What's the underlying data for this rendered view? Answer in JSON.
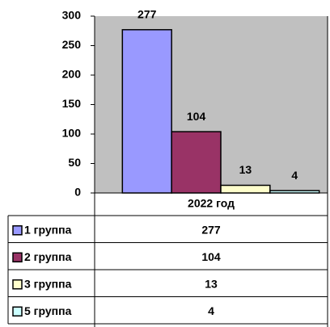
{
  "chart_data": {
    "type": "bar",
    "categories": [
      "2022 год"
    ],
    "series": [
      {
        "name": "1 группа",
        "color": "#9999ff",
        "values": [
          277
        ]
      },
      {
        "name": "2 группа",
        "color": "#993366",
        "values": [
          104
        ]
      },
      {
        "name": "3 группа",
        "color": "#ffffcc",
        "values": [
          13
        ]
      },
      {
        "name": "5 группа",
        "color": "#ccffff",
        "values": [
          4
        ]
      }
    ],
    "ylim": [
      0,
      300
    ],
    "yticks": [
      0,
      50,
      100,
      150,
      200,
      250,
      300
    ],
    "grid": false
  }
}
